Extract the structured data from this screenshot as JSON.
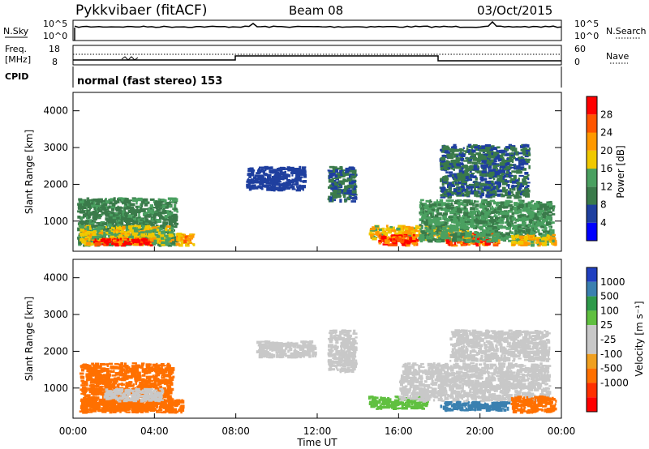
{
  "header": {
    "site": "Pykkvibaer (fitACF)",
    "beam": "Beam 08",
    "date": "03/Oct/2015"
  },
  "noise_panel": {
    "left_label": "N.Sky",
    "right_label": "N.Search",
    "left_ticks": [
      "10^5",
      "10^0"
    ],
    "right_ticks": [
      "10^5",
      "10^0"
    ]
  },
  "freq_panel": {
    "left_label_1": "Freq.",
    "left_label_2": "[MHz]",
    "left_ticks": [
      "18",
      "8"
    ],
    "right_label": "Nave",
    "right_ticks": [
      "60",
      "0"
    ],
    "cpid_label": "CPID",
    "mode_text": "normal (fast stereo) 153"
  },
  "x_axis": {
    "label": "Time UT",
    "ticks": [
      "00:00",
      "04:00",
      "08:00",
      "12:00",
      "16:00",
      "20:00",
      "00:00"
    ]
  },
  "power_panel": {
    "ylabel": "Slant Range [km]",
    "y_ticks": [
      "4000",
      "3000",
      "2000",
      "1000"
    ],
    "colorbar_label": "Power [dB]",
    "colorbar_ticks": [
      "28",
      "24",
      "20",
      "16",
      "12",
      "8",
      "4"
    ],
    "colors": [
      "#0000ff",
      "#1f3f9f",
      "#3a7a4a",
      "#4aa060",
      "#f0c800",
      "#ff9900",
      "#ff5500",
      "#ff0000"
    ]
  },
  "velocity_panel": {
    "ylabel": "Slant Range [km]",
    "y_ticks": [
      "4000",
      "3000",
      "2000",
      "1000"
    ],
    "colorbar_label": "Velocity [m s⁻¹]",
    "colorbar_ticks": [
      "1000",
      "500",
      "100",
      "25",
      "-25",
      "-100",
      "-500",
      "-1000"
    ],
    "colors": [
      "#2040c0",
      "#3a80b0",
      "#2e9a4a",
      "#60c040",
      "#c8c8c8",
      "#c8c8c8",
      "#f0a020",
      "#ff7000",
      "#ff3000",
      "#ff0000"
    ]
  },
  "chart_data": [
    {
      "type": "heatmap",
      "name": "Power",
      "x_range_hours": [
        0,
        24
      ],
      "y_range_km": [
        180,
        4500
      ],
      "color_range_db": [
        0,
        30
      ],
      "regions": [
        {
          "t0": 0.2,
          "t1": 5.2,
          "r0": 300,
          "r1": 1650,
          "value": 10
        },
        {
          "t0": 0.3,
          "t1": 5.0,
          "r0": 320,
          "r1": 900,
          "value": 16
        },
        {
          "t0": 1.0,
          "t1": 4.0,
          "r0": 300,
          "r1": 550,
          "value": 26
        },
        {
          "t0": 5.0,
          "t1": 6.0,
          "r0": 300,
          "r1": 700,
          "value": 20
        },
        {
          "t0": 8.5,
          "t1": 11.5,
          "r0": 1800,
          "r1": 2500,
          "value": 6
        },
        {
          "t0": 12.5,
          "t1": 14.0,
          "r0": 1500,
          "r1": 2500,
          "value": 8
        },
        {
          "t0": 14.5,
          "t1": 19.5,
          "r0": 450,
          "r1": 900,
          "value": 18
        },
        {
          "t0": 15.0,
          "t1": 17.0,
          "r0": 300,
          "r1": 650,
          "value": 26
        },
        {
          "t0": 18.3,
          "t1": 21.0,
          "r0": 300,
          "r1": 700,
          "value": 24
        },
        {
          "t0": 17.0,
          "t1": 23.7,
          "r0": 400,
          "r1": 1600,
          "value": 12
        },
        {
          "t0": 18.0,
          "t1": 22.5,
          "r0": 1600,
          "r1": 3100,
          "value": 8
        },
        {
          "t0": 21.5,
          "t1": 23.8,
          "r0": 300,
          "r1": 650,
          "value": 18
        }
      ]
    },
    {
      "type": "heatmap",
      "name": "Velocity",
      "x_range_hours": [
        0,
        24
      ],
      "y_range_km": [
        180,
        4500
      ],
      "color_range_ms": [
        -1000,
        1000
      ],
      "regions": [
        {
          "t0": 0.3,
          "t1": 5.0,
          "r0": 350,
          "r1": 1700,
          "value": -300
        },
        {
          "t0": 0.3,
          "t1": 5.5,
          "r0": 300,
          "r1": 700,
          "value": -150
        },
        {
          "t0": 1.5,
          "t1": 4.5,
          "r0": 600,
          "r1": 1000,
          "value": 0
        },
        {
          "t0": 9.0,
          "t1": 12.0,
          "r0": 1800,
          "r1": 2300,
          "value": 0
        },
        {
          "t0": 12.5,
          "t1": 14.0,
          "r0": 1400,
          "r1": 2600,
          "value": -20
        },
        {
          "t0": 14.5,
          "t1": 17.5,
          "r0": 400,
          "r1": 800,
          "value": 80
        },
        {
          "t0": 16.0,
          "t1": 23.5,
          "r0": 600,
          "r1": 1700,
          "value": 0
        },
        {
          "t0": 18.5,
          "t1": 23.5,
          "r0": 1700,
          "r1": 2600,
          "value": 10
        },
        {
          "t0": 18.0,
          "t1": 21.5,
          "r0": 350,
          "r1": 650,
          "value": 150
        },
        {
          "t0": 21.5,
          "t1": 23.8,
          "r0": 300,
          "r1": 800,
          "value": -200
        }
      ]
    }
  ]
}
